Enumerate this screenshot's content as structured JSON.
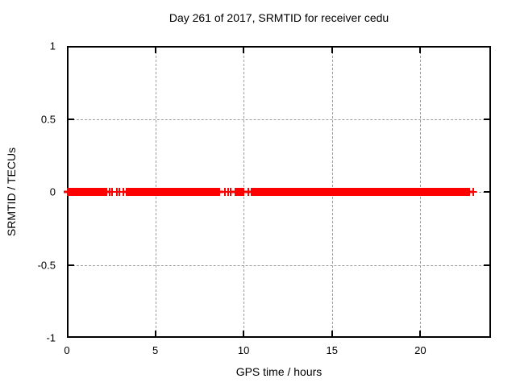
{
  "chart_data": {
    "type": "scatter",
    "title": "Day 261 of 2017, SRMTID for receiver cedu",
    "xlabel": "GPS time / hours",
    "ylabel": "SRMTID / TECUs",
    "xlim": [
      0,
      24
    ],
    "ylim": [
      -1,
      1
    ],
    "xticks": [
      0,
      5,
      10,
      15,
      20
    ],
    "yticks": [
      1,
      0.5,
      0,
      -0.5,
      -1
    ],
    "grid": true,
    "legend": "none",
    "marker": "plus",
    "series": [
      {
        "name": "SRMTID",
        "y_value": 0,
        "dense_segments_hours": [
          [
            0,
            2.28
          ],
          [
            3.35,
            8.67
          ],
          [
            9.5,
            10.03
          ],
          [
            10.42,
            22.82
          ]
        ],
        "isolated_points_hours": [
          2.42,
          2.55,
          2.83,
          2.98,
          3.18,
          8.93,
          9.12,
          9.28,
          10.26,
          23.0
        ]
      }
    ]
  },
  "colors": {
    "marker": "#ff0000",
    "grid": "#9e9e9e",
    "border": "#000000",
    "text": "#000000",
    "background": "#ffffff"
  }
}
